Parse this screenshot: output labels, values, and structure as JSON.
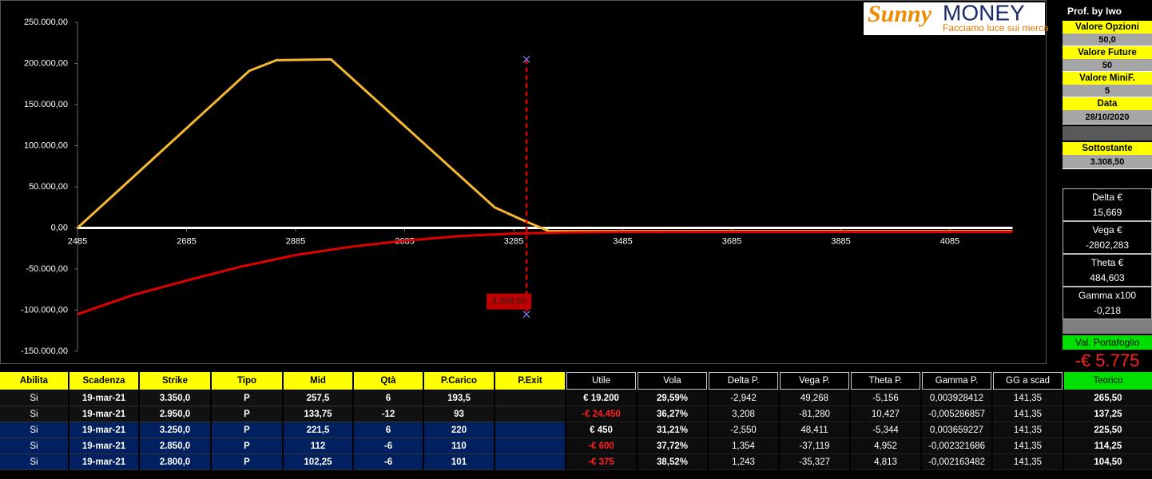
{
  "header": {
    "logo": {
      "brand_a": "Sunny",
      "brand_b": "MONEY",
      "tagline": "Facciamo luce sui mercati"
    }
  },
  "chart_data": {
    "type": "line",
    "xlim": [
      2485,
      4200
    ],
    "ylim": [
      -150000,
      250000
    ],
    "xticks": [
      2485,
      2685,
      2885,
      3085,
      3285,
      3485,
      3685,
      3885,
      4085
    ],
    "yticks": [
      {
        "value": 250000,
        "label": "250.000,00"
      },
      {
        "value": 200000,
        "label": "200.000,00"
      },
      {
        "value": 150000,
        "label": "150.000,00"
      },
      {
        "value": 100000,
        "label": "100.000,00"
      },
      {
        "value": 50000,
        "label": "50.000,00"
      },
      {
        "value": 0,
        "label": "0,00"
      },
      {
        "value": -50000,
        "label": "-50.000,00"
      },
      {
        "value": -100000,
        "label": "-100.000,00"
      },
      {
        "value": -150000,
        "label": "-150.000,00"
      }
    ],
    "series": [
      {
        "color": "#f5b82e",
        "x": [
          2485,
          2600,
          2700,
          2800,
          2850,
          2950,
          3000,
          3100,
          3200,
          3250,
          3300,
          3350,
          3400,
          3500,
          3700,
          3900,
          4100,
          4200
        ],
        "values": [
          0,
          69700,
          130300,
          191000,
          204000,
          205000,
          175000,
          115000,
          55000,
          25000,
          10000,
          -4000,
          -4000,
          -4000,
          -4000,
          -4000,
          -4000,
          -4000
        ]
      },
      {
        "color": "#e00000",
        "x": [
          2485,
          2585,
          2685,
          2785,
          2885,
          2985,
          3085,
          3185,
          3285,
          3385,
          3485,
          3685,
          3885,
          4085,
          4200
        ],
        "values": [
          -105000,
          -82000,
          -64000,
          -47000,
          -33000,
          -23000,
          -15500,
          -10000,
          -6800,
          -5500,
          -5000,
          -4800,
          -4800,
          -4800,
          -4800
        ]
      }
    ],
    "marker": {
      "x": 3308.5,
      "label": "3.308,50",
      "y_top": 205000,
      "y_bottom": -105000
    }
  },
  "panel": {
    "title": "Prof. by Iwo",
    "fields": [
      {
        "label": "Valore Opzioni",
        "value": "50,0"
      },
      {
        "label": "Valore Future",
        "value": "50"
      },
      {
        "label": "Valore MiniF.",
        "value": "5"
      },
      {
        "label": "Data",
        "value": "28/10/2020"
      },
      {
        "label": "Sottostante",
        "value": "3.308,50"
      }
    ],
    "greeks": [
      {
        "label": "Delta €",
        "value": "15,669"
      },
      {
        "label": "Vega €",
        "value": "-2802,283"
      },
      {
        "label": "Theta €",
        "value": "484,603"
      },
      {
        "label": "Gamma x100",
        "value": "-0,218"
      }
    ],
    "portfolio": {
      "label": "Val. Portafoglio",
      "value": "-€ 5.775"
    }
  },
  "table": {
    "left_headers": [
      "Abilita",
      "Scadenza",
      "Strike",
      "Tipo",
      "Mid",
      "Qtà",
      "P.Carico",
      "P.Exit"
    ],
    "right_headers": [
      "Utile",
      "Vola",
      "Delta P.",
      "Vega P.",
      "Theta P.",
      "Gamma P.",
      "GG a scad",
      "Teorico"
    ],
    "rows": [
      {
        "left": [
          "Si",
          "19-mar-21",
          "3.350,0",
          "P",
          "257,5",
          "6",
          "193,5"
        ],
        "right": [
          "€ 19.200",
          "29,59%",
          "-2,942",
          "49,268",
          "-5,156",
          "0,003928412",
          "141,35",
          "265,50"
        ]
      },
      {
        "left": [
          "Si",
          "19-mar-21",
          "2.950,0",
          "P",
          "133,75",
          "-12",
          "93"
        ],
        "right": [
          "-€ 24.450",
          "36,27%",
          "3,208",
          "-81,280",
          "10,427",
          "-0,005286857",
          "141,35",
          "137,25"
        ]
      },
      {
        "left": [
          "Si",
          "19-mar-21",
          "3.250,0",
          "P",
          "221,5",
          "6",
          "220"
        ],
        "right": [
          "€ 450",
          "31,21%",
          "-2,550",
          "48,411",
          "-5,344",
          "0,003659227",
          "141,35",
          "225,50"
        ]
      },
      {
        "left": [
          "Si",
          "19-mar-21",
          "2.850,0",
          "P",
          "112",
          "-6",
          "110"
        ],
        "right": [
          "-€ 600",
          "37,72%",
          "1,354",
          "-37,119",
          "4,952",
          "-0,002321686",
          "141,35",
          "114,25"
        ]
      },
      {
        "left": [
          "Si",
          "19-mar-21",
          "2.800,0",
          "P",
          "102,25",
          "-6",
          "101"
        ],
        "right": [
          "-€ 375",
          "38,52%",
          "1,243",
          "-35,327",
          "4,813",
          "-0,002163482",
          "141,35",
          "104,50"
        ]
      }
    ]
  }
}
